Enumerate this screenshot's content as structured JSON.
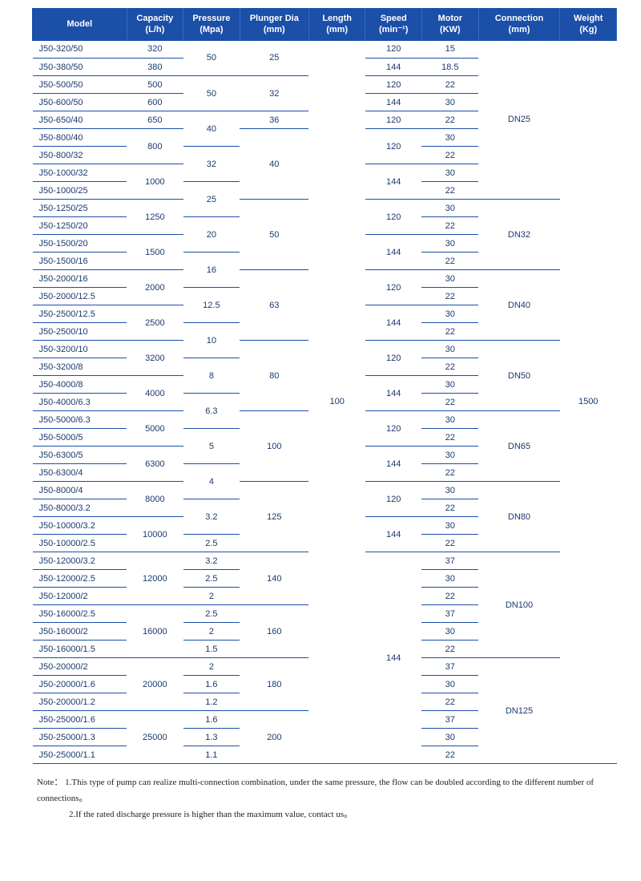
{
  "header": {
    "bg": "#1b4fa8",
    "fg": "#ffffff",
    "cols": [
      {
        "l1": "Model",
        "l2": ""
      },
      {
        "l1": "Capacity",
        "l2": "(L/h)"
      },
      {
        "l1": "Pressure",
        "l2": "(Mpa)"
      },
      {
        "l1": "Plunger Dia",
        "l2": "(mm)"
      },
      {
        "l1": "Length",
        "l2": "(mm)"
      },
      {
        "l1": "Speed",
        "l2": "(min⁻¹)"
      },
      {
        "l1": "Motor",
        "l2": "(KW)"
      },
      {
        "l1": "Connection",
        "l2": "(mm)"
      },
      {
        "l1": "Weight",
        "l2": "(Kg)"
      }
    ]
  },
  "colWidths": [
    "15%",
    "9%",
    "9%",
    "11%",
    "9%",
    "9%",
    "9%",
    "13%",
    "9%"
  ],
  "length": "100",
  "weight": "1500",
  "rows": [
    {
      "model": "J50-320/50",
      "capacity": "320",
      "pressure": "50",
      "pRow": 2,
      "plunger": "25",
      "plRow": 2,
      "speed": "120",
      "spRow": 1,
      "motor": "15",
      "conn": "DN25",
      "conRow": 9
    },
    {
      "model": "J50-380/50",
      "capacity": "380",
      "speed": "144",
      "spRow": 1,
      "motor": "18.5"
    },
    {
      "model": "J50-500/50",
      "capacity": "500",
      "pressure": "50",
      "pRow": 2,
      "plunger": "32",
      "plRow": 2,
      "speed": "120",
      "spRow": 1,
      "motor": "22"
    },
    {
      "model": "J50-600/50",
      "capacity": "600",
      "speed": "144",
      "spRow": 1,
      "motor": "30"
    },
    {
      "model": "J50-650/40",
      "capacity": "650",
      "pressure": "40",
      "pRow": 2,
      "plunger": "36",
      "plRow": 1,
      "speed": "120",
      "spRow": 1,
      "motor": "22"
    },
    {
      "model": "J50-800/40",
      "capacity": "800",
      "capRow": 2,
      "plunger": "40",
      "plRow": 4,
      "speed": "120",
      "spRow": 2,
      "motor": "30"
    },
    {
      "model": "J50-800/32",
      "pressure": "32",
      "pRow": 2,
      "motor": "22"
    },
    {
      "model": "J50-1000/32",
      "capacity": "1000",
      "capRow": 2,
      "speed": "144",
      "spRow": 2,
      "motor": "30"
    },
    {
      "model": "J50-1000/25",
      "pressure": "25",
      "pRow": 2,
      "motor": "22"
    },
    {
      "model": "J50-1250/25",
      "capacity": "1250",
      "capRow": 2,
      "plunger": "50",
      "plRow": 4,
      "speed": "120",
      "spRow": 2,
      "motor": "30",
      "conn": "DN32",
      "conRow": 4
    },
    {
      "model": "J50-1250/20",
      "pressure": "20",
      "pRow": 2,
      "motor": "22"
    },
    {
      "model": "J50-1500/20",
      "capacity": "1500",
      "capRow": 2,
      "speed": "144",
      "spRow": 2,
      "motor": "30"
    },
    {
      "model": "J50-1500/16",
      "pressure": "16",
      "pRow": 2,
      "motor": "22"
    },
    {
      "model": "J50-2000/16",
      "capacity": "2000",
      "capRow": 2,
      "plunger": "63",
      "plRow": 4,
      "speed": "120",
      "spRow": 2,
      "motor": "30",
      "conn": "DN40",
      "conRow": 4
    },
    {
      "model": "J50-2000/12.5",
      "pressure": "12.5",
      "pRow": 2,
      "motor": "22"
    },
    {
      "model": "J50-2500/12.5",
      "capacity": "2500",
      "capRow": 2,
      "speed": "144",
      "spRow": 2,
      "motor": "30"
    },
    {
      "model": "J50-2500/10",
      "pressure": "10",
      "pRow": 2,
      "motor": "22"
    },
    {
      "model": "J50-3200/10",
      "capacity": "3200",
      "capRow": 2,
      "plunger": "80",
      "plRow": 4,
      "speed": "120",
      "spRow": 2,
      "motor": "30",
      "conn": "DN50",
      "conRow": 4
    },
    {
      "model": "J50-3200/8",
      "pressure": "8",
      "pRow": 2,
      "motor": "22"
    },
    {
      "model": "J50-4000/8",
      "capacity": "4000",
      "capRow": 2,
      "speed": "144",
      "spRow": 2,
      "motor": "30"
    },
    {
      "model": "J50-4000/6.3",
      "pressure": "6.3",
      "pRow": 2,
      "motor": "22"
    },
    {
      "model": "J50-5000/6.3",
      "capacity": "5000",
      "capRow": 2,
      "plunger": "100",
      "plRow": 4,
      "speed": "120",
      "spRow": 2,
      "motor": "30",
      "conn": "DN65",
      "conRow": 4
    },
    {
      "model": "J50-5000/5",
      "pressure": "5",
      "pRow": 2,
      "motor": "22"
    },
    {
      "model": "J50-6300/5",
      "capacity": "6300",
      "capRow": 2,
      "speed": "144",
      "spRow": 2,
      "motor": "30"
    },
    {
      "model": "J50-6300/4",
      "pressure": "4",
      "pRow": 2,
      "motor": "22"
    },
    {
      "model": "J50-8000/4",
      "capacity": "8000",
      "capRow": 2,
      "plunger": "125",
      "plRow": 4,
      "speed": "120",
      "spRow": 2,
      "motor": "30",
      "conn": "DN80",
      "conRow": 4
    },
    {
      "model": "J50-8000/3.2",
      "pressure": "3.2",
      "pRow": 2,
      "motor": "22"
    },
    {
      "model": "J50-10000/3.2",
      "capacity": "10000",
      "capRow": 2,
      "speed": "144",
      "spRow": 2,
      "motor": "30"
    },
    {
      "model": "J50-10000/2.5",
      "pressure": "2.5",
      "pRow": 1,
      "motor": "22"
    },
    {
      "model": "J50-12000/3.2",
      "capacity": "12000",
      "capRow": 3,
      "pressure": "3.2",
      "pRow": 1,
      "plunger": "140",
      "plRow": 3,
      "speed": "144",
      "spRow": 12,
      "motor": "37",
      "conn": "DN100",
      "conRow": 6
    },
    {
      "model": "J50-12000/2.5",
      "pressure": "2.5",
      "pRow": 1,
      "motor": "30"
    },
    {
      "model": "J50-12000/2",
      "pressure": "2",
      "pRow": 1,
      "motor": "22"
    },
    {
      "model": "J50-16000/2.5",
      "capacity": "16000",
      "capRow": 3,
      "pressure": "2.5",
      "pRow": 1,
      "plunger": "160",
      "plRow": 3,
      "motor": "37"
    },
    {
      "model": "J50-16000/2",
      "pressure": "2",
      "pRow": 1,
      "motor": "30"
    },
    {
      "model": "J50-16000/1.5",
      "pressure": "1.5",
      "pRow": 1,
      "motor": "22"
    },
    {
      "model": "J50-20000/2",
      "capacity": "20000",
      "capRow": 3,
      "pressure": "2",
      "pRow": 1,
      "plunger": "180",
      "plRow": 3,
      "motor": "37",
      "conn": "DN125",
      "conRow": 6
    },
    {
      "model": "J50-20000/1.6",
      "pressure": "1.6",
      "pRow": 1,
      "motor": "30"
    },
    {
      "model": "J50-20000/1.2",
      "pressure": "1.2",
      "pRow": 1,
      "motor": "22"
    },
    {
      "model": "J50-25000/1.6",
      "capacity": "25000",
      "capRow": 3,
      "pressure": "1.6",
      "pRow": 1,
      "plunger": "200",
      "plRow": 3,
      "motor": "37"
    },
    {
      "model": "J50-25000/1.3",
      "pressure": "1.3",
      "pRow": 1,
      "motor": "30"
    },
    {
      "model": "J50-25000/1.1",
      "pressure": "1.1",
      "pRow": 1,
      "motor": "22"
    }
  ],
  "note": {
    "label": "Note：",
    "line1": "1.This type of pump can realize multi-connection combination, under the same pressure, the flow can be doubled according to the different number of connections。",
    "line2": "2.If the rated discharge pressure is higher than the maximum value, contact us。"
  }
}
